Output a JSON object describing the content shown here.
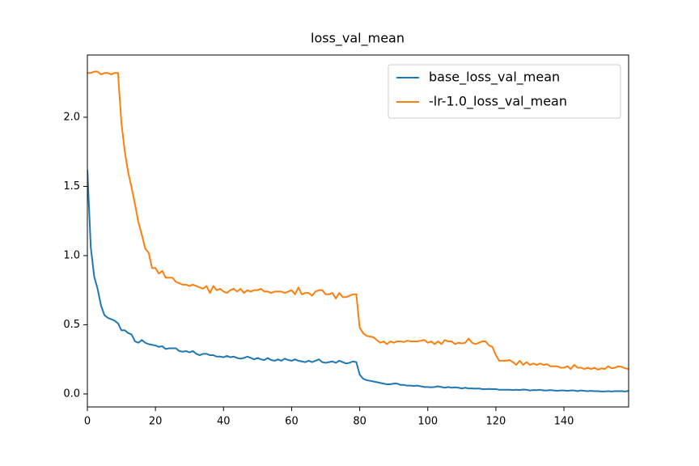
{
  "chart_data": {
    "type": "line",
    "title": "loss_val_mean",
    "x": [
      0,
      1,
      2,
      3,
      4,
      5,
      6,
      7,
      8,
      9,
      10,
      11,
      12,
      13,
      14,
      15,
      16,
      17,
      18,
      19,
      20,
      21,
      22,
      23,
      24,
      25,
      26,
      27,
      28,
      29,
      30,
      31,
      32,
      33,
      34,
      35,
      36,
      37,
      38,
      39,
      40,
      41,
      42,
      43,
      44,
      45,
      46,
      47,
      48,
      49,
      50,
      51,
      52,
      53,
      54,
      55,
      56,
      57,
      58,
      59,
      60,
      61,
      62,
      63,
      64,
      65,
      66,
      67,
      68,
      69,
      70,
      71,
      72,
      73,
      74,
      75,
      76,
      77,
      78,
      79,
      80,
      81,
      82,
      83,
      84,
      85,
      86,
      87,
      88,
      89,
      90,
      91,
      92,
      93,
      94,
      95,
      96,
      97,
      98,
      99,
      100,
      101,
      102,
      103,
      104,
      105,
      106,
      107,
      108,
      109,
      110,
      111,
      112,
      113,
      114,
      115,
      116,
      117,
      118,
      119,
      120,
      121,
      122,
      123,
      124,
      125,
      126,
      127,
      128,
      129,
      130,
      131,
      132,
      133,
      134,
      135,
      136,
      137,
      138,
      139,
      140,
      141,
      142,
      143,
      144,
      145,
      146,
      147,
      148,
      149,
      150,
      151,
      152,
      153,
      154,
      155,
      156,
      157,
      158,
      159
    ],
    "series": [
      {
        "name": "base_loss_val_mean",
        "color": "#1f77b4",
        "values": [
          1.62,
          1.06,
          0.85,
          0.76,
          0.64,
          0.57,
          0.55,
          0.54,
          0.53,
          0.51,
          0.46,
          0.46,
          0.44,
          0.43,
          0.38,
          0.37,
          0.39,
          0.37,
          0.36,
          0.355,
          0.35,
          0.34,
          0.345,
          0.325,
          0.33,
          0.33,
          0.33,
          0.31,
          0.305,
          0.31,
          0.3,
          0.31,
          0.29,
          0.28,
          0.29,
          0.29,
          0.28,
          0.28,
          0.27,
          0.27,
          0.265,
          0.275,
          0.265,
          0.27,
          0.26,
          0.255,
          0.26,
          0.27,
          0.26,
          0.25,
          0.26,
          0.25,
          0.245,
          0.26,
          0.245,
          0.24,
          0.25,
          0.24,
          0.255,
          0.245,
          0.24,
          0.25,
          0.24,
          0.235,
          0.23,
          0.24,
          0.23,
          0.24,
          0.25,
          0.23,
          0.225,
          0.23,
          0.235,
          0.225,
          0.24,
          0.23,
          0.22,
          0.225,
          0.235,
          0.23,
          0.14,
          0.11,
          0.1,
          0.095,
          0.09,
          0.085,
          0.08,
          0.075,
          0.07,
          0.07,
          0.075,
          0.075,
          0.065,
          0.065,
          0.06,
          0.06,
          0.058,
          0.06,
          0.055,
          0.05,
          0.05,
          0.048,
          0.05,
          0.055,
          0.05,
          0.045,
          0.05,
          0.045,
          0.048,
          0.045,
          0.04,
          0.045,
          0.04,
          0.04,
          0.038,
          0.04,
          0.035,
          0.035,
          0.036,
          0.035,
          0.035,
          0.03,
          0.03,
          0.03,
          0.03,
          0.028,
          0.03,
          0.028,
          0.032,
          0.03,
          0.025,
          0.028,
          0.027,
          0.03,
          0.025,
          0.025,
          0.028,
          0.025,
          0.023,
          0.025,
          0.025,
          0.022,
          0.025,
          0.025,
          0.02,
          0.025,
          0.022,
          0.02,
          0.022,
          0.02,
          0.02,
          0.018,
          0.018,
          0.02,
          0.018,
          0.02,
          0.02,
          0.02,
          0.018,
          0.022
        ]
      },
      {
        "name": "-lr-1.0_loss_val_mean",
        "color": "#ff7f0e",
        "values": [
          2.32,
          2.32,
          2.33,
          2.33,
          2.31,
          2.32,
          2.32,
          2.31,
          2.32,
          2.32,
          1.96,
          1.75,
          1.6,
          1.49,
          1.37,
          1.24,
          1.15,
          1.05,
          1.02,
          0.91,
          0.91,
          0.87,
          0.89,
          0.84,
          0.84,
          0.84,
          0.81,
          0.8,
          0.79,
          0.79,
          0.78,
          0.79,
          0.78,
          0.77,
          0.76,
          0.78,
          0.73,
          0.78,
          0.75,
          0.76,
          0.74,
          0.73,
          0.75,
          0.76,
          0.74,
          0.76,
          0.73,
          0.75,
          0.74,
          0.75,
          0.75,
          0.76,
          0.74,
          0.74,
          0.73,
          0.74,
          0.74,
          0.74,
          0.73,
          0.74,
          0.75,
          0.72,
          0.77,
          0.72,
          0.73,
          0.73,
          0.71,
          0.74,
          0.75,
          0.75,
          0.72,
          0.72,
          0.73,
          0.69,
          0.73,
          0.7,
          0.7,
          0.71,
          0.72,
          0.72,
          0.48,
          0.44,
          0.42,
          0.415,
          0.41,
          0.39,
          0.37,
          0.38,
          0.36,
          0.38,
          0.37,
          0.38,
          0.38,
          0.375,
          0.385,
          0.38,
          0.38,
          0.38,
          0.385,
          0.39,
          0.37,
          0.38,
          0.36,
          0.38,
          0.36,
          0.39,
          0.38,
          0.38,
          0.36,
          0.37,
          0.365,
          0.37,
          0.4,
          0.37,
          0.36,
          0.37,
          0.38,
          0.38,
          0.35,
          0.34,
          0.28,
          0.24,
          0.24,
          0.24,
          0.245,
          0.23,
          0.21,
          0.24,
          0.21,
          0.23,
          0.21,
          0.22,
          0.21,
          0.22,
          0.21,
          0.215,
          0.2,
          0.2,
          0.2,
          0.19,
          0.19,
          0.2,
          0.18,
          0.21,
          0.19,
          0.19,
          0.18,
          0.19,
          0.18,
          0.19,
          0.175,
          0.185,
          0.18,
          0.2,
          0.185,
          0.19,
          0.2,
          0.195,
          0.185,
          0.18
        ]
      }
    ],
    "xlim": [
      0,
      159
    ],
    "ylim": [
      -0.094,
      2.45
    ],
    "xticks": [
      0,
      20,
      40,
      60,
      80,
      100,
      120,
      140
    ],
    "yticks": [
      {
        "value": 0,
        "label": "0.0"
      },
      {
        "value": 0.5,
        "label": "0.5"
      },
      {
        "value": 1,
        "label": "1.0"
      },
      {
        "value": 1.5,
        "label": "1.5"
      },
      {
        "value": 2,
        "label": "2.0"
      }
    ],
    "grid": false,
    "legend": "upper right"
  }
}
